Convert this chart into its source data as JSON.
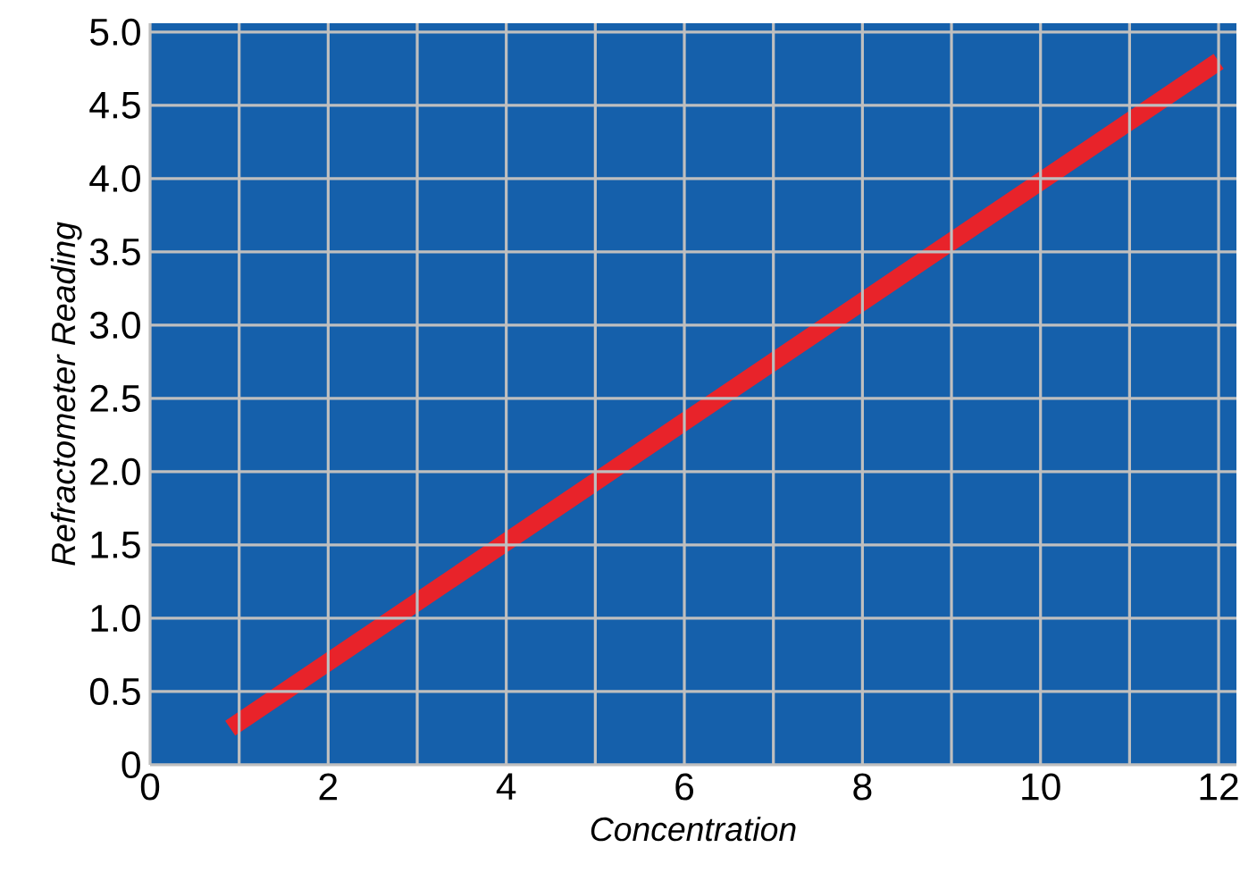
{
  "chart_data": {
    "type": "line",
    "xlabel": "Concentration",
    "ylabel": "Refractometer Reading",
    "x": [
      0.9,
      12
    ],
    "series": [
      {
        "color": "#e8232a",
        "values": [
          0.25,
          4.8
        ]
      }
    ],
    "xlim": [
      0,
      12.2
    ],
    "ylim": [
      0,
      5.06
    ],
    "xticks": [
      0,
      2,
      4,
      6,
      8,
      10,
      12
    ],
    "yticks": [
      {
        "value": 0,
        "label": "0"
      },
      {
        "value": 0.5,
        "label": "0.5"
      },
      {
        "value": 1,
        "label": "1.0"
      },
      {
        "value": 1.5,
        "label": "1.5"
      },
      {
        "value": 2,
        "label": "2.0"
      },
      {
        "value": 2.5,
        "label": "2.5"
      },
      {
        "value": 3,
        "label": "3.0"
      },
      {
        "value": 3.5,
        "label": "3.5"
      },
      {
        "value": 4,
        "label": "4.0"
      },
      {
        "value": 4.5,
        "label": "4.5"
      },
      {
        "value": 5,
        "label": "5.0"
      }
    ],
    "grid": true,
    "marker": "none",
    "line_style": "solid"
  }
}
